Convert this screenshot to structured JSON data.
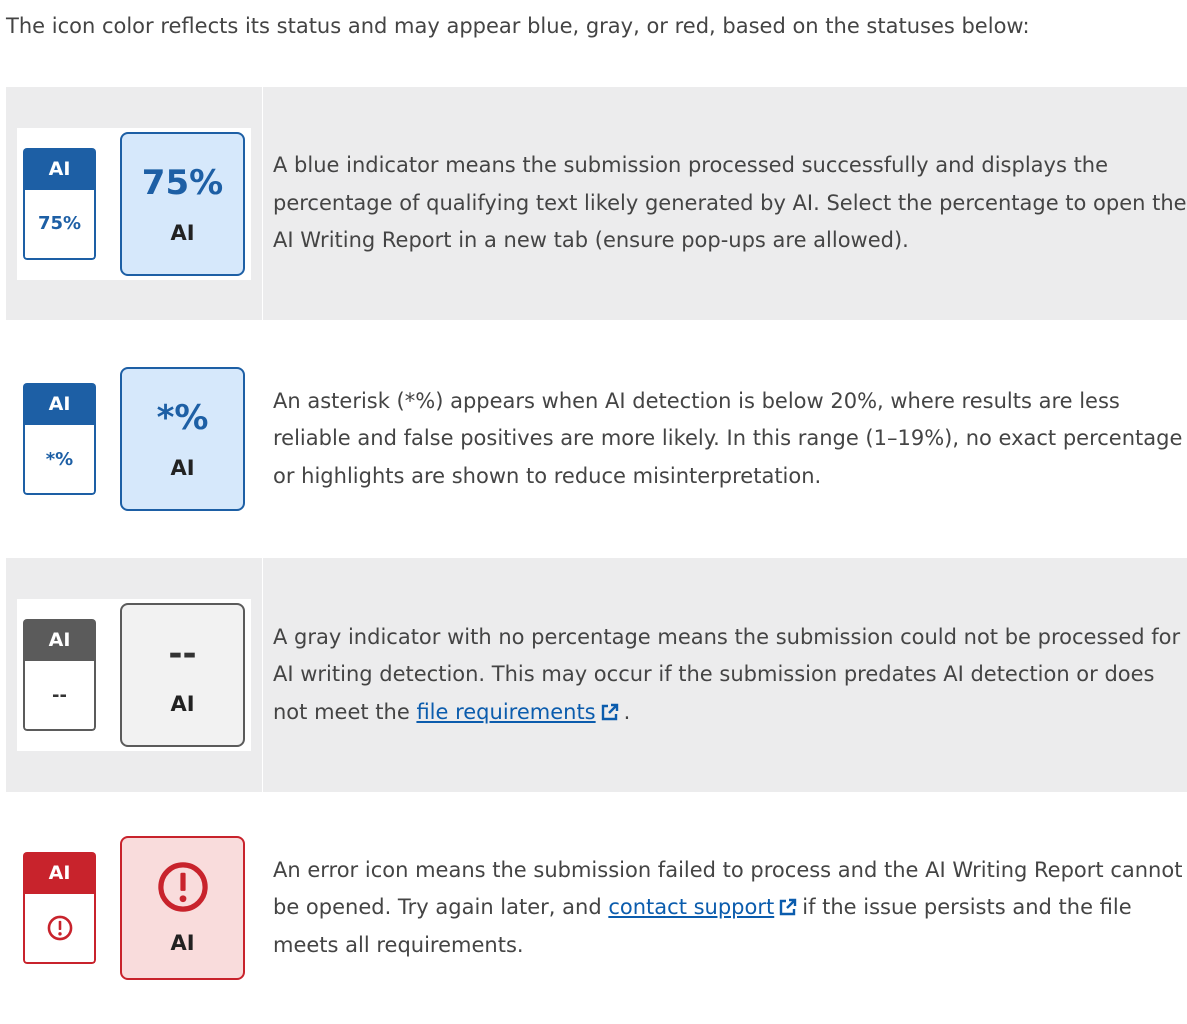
{
  "intro": "The icon color reflects its status and may appear blue, gray, or red, based on the statuses below:",
  "rows": [
    {
      "small_icon": {
        "header": "AI",
        "value": "75%"
      },
      "large_icon": {
        "value": "75%",
        "label": "AI"
      },
      "description": {
        "text": "A blue indicator means the submission processed successfully and displays the percentage of qualifying text likely generated by AI. Select the percentage to open the AI Writing Report in a new tab (ensure pop-ups are allowed)."
      }
    },
    {
      "small_icon": {
        "header": "AI",
        "value": "*%"
      },
      "large_icon": {
        "value": "*%",
        "label": "AI"
      },
      "description": {
        "text": "An asterisk (*%) appears when AI detection is below 20%, where results are less reliable and false positives are more likely. In this range (1–19%), no exact percentage or highlights are shown to reduce misinterpretation."
      }
    },
    {
      "small_icon": {
        "header": "AI",
        "value": "--"
      },
      "large_icon": {
        "value": "--",
        "label": "AI"
      },
      "description": {
        "text": "A gray indicator with no percentage means the submission could not be processed for AI writing detection. This may occur if the submission predates AI detection or does not meet the",
        "link": "file requirements",
        "after": "."
      }
    },
    {
      "small_icon": {
        "header": "AI"
      },
      "large_icon": {
        "label": "AI"
      },
      "description": {
        "text": "An error icon means the submission failed to process and the AI Writing Report cannot be opened. Try again later, and",
        "link": "contact support",
        "after": "if the issue persists and the file meets all requirements."
      }
    }
  ]
}
